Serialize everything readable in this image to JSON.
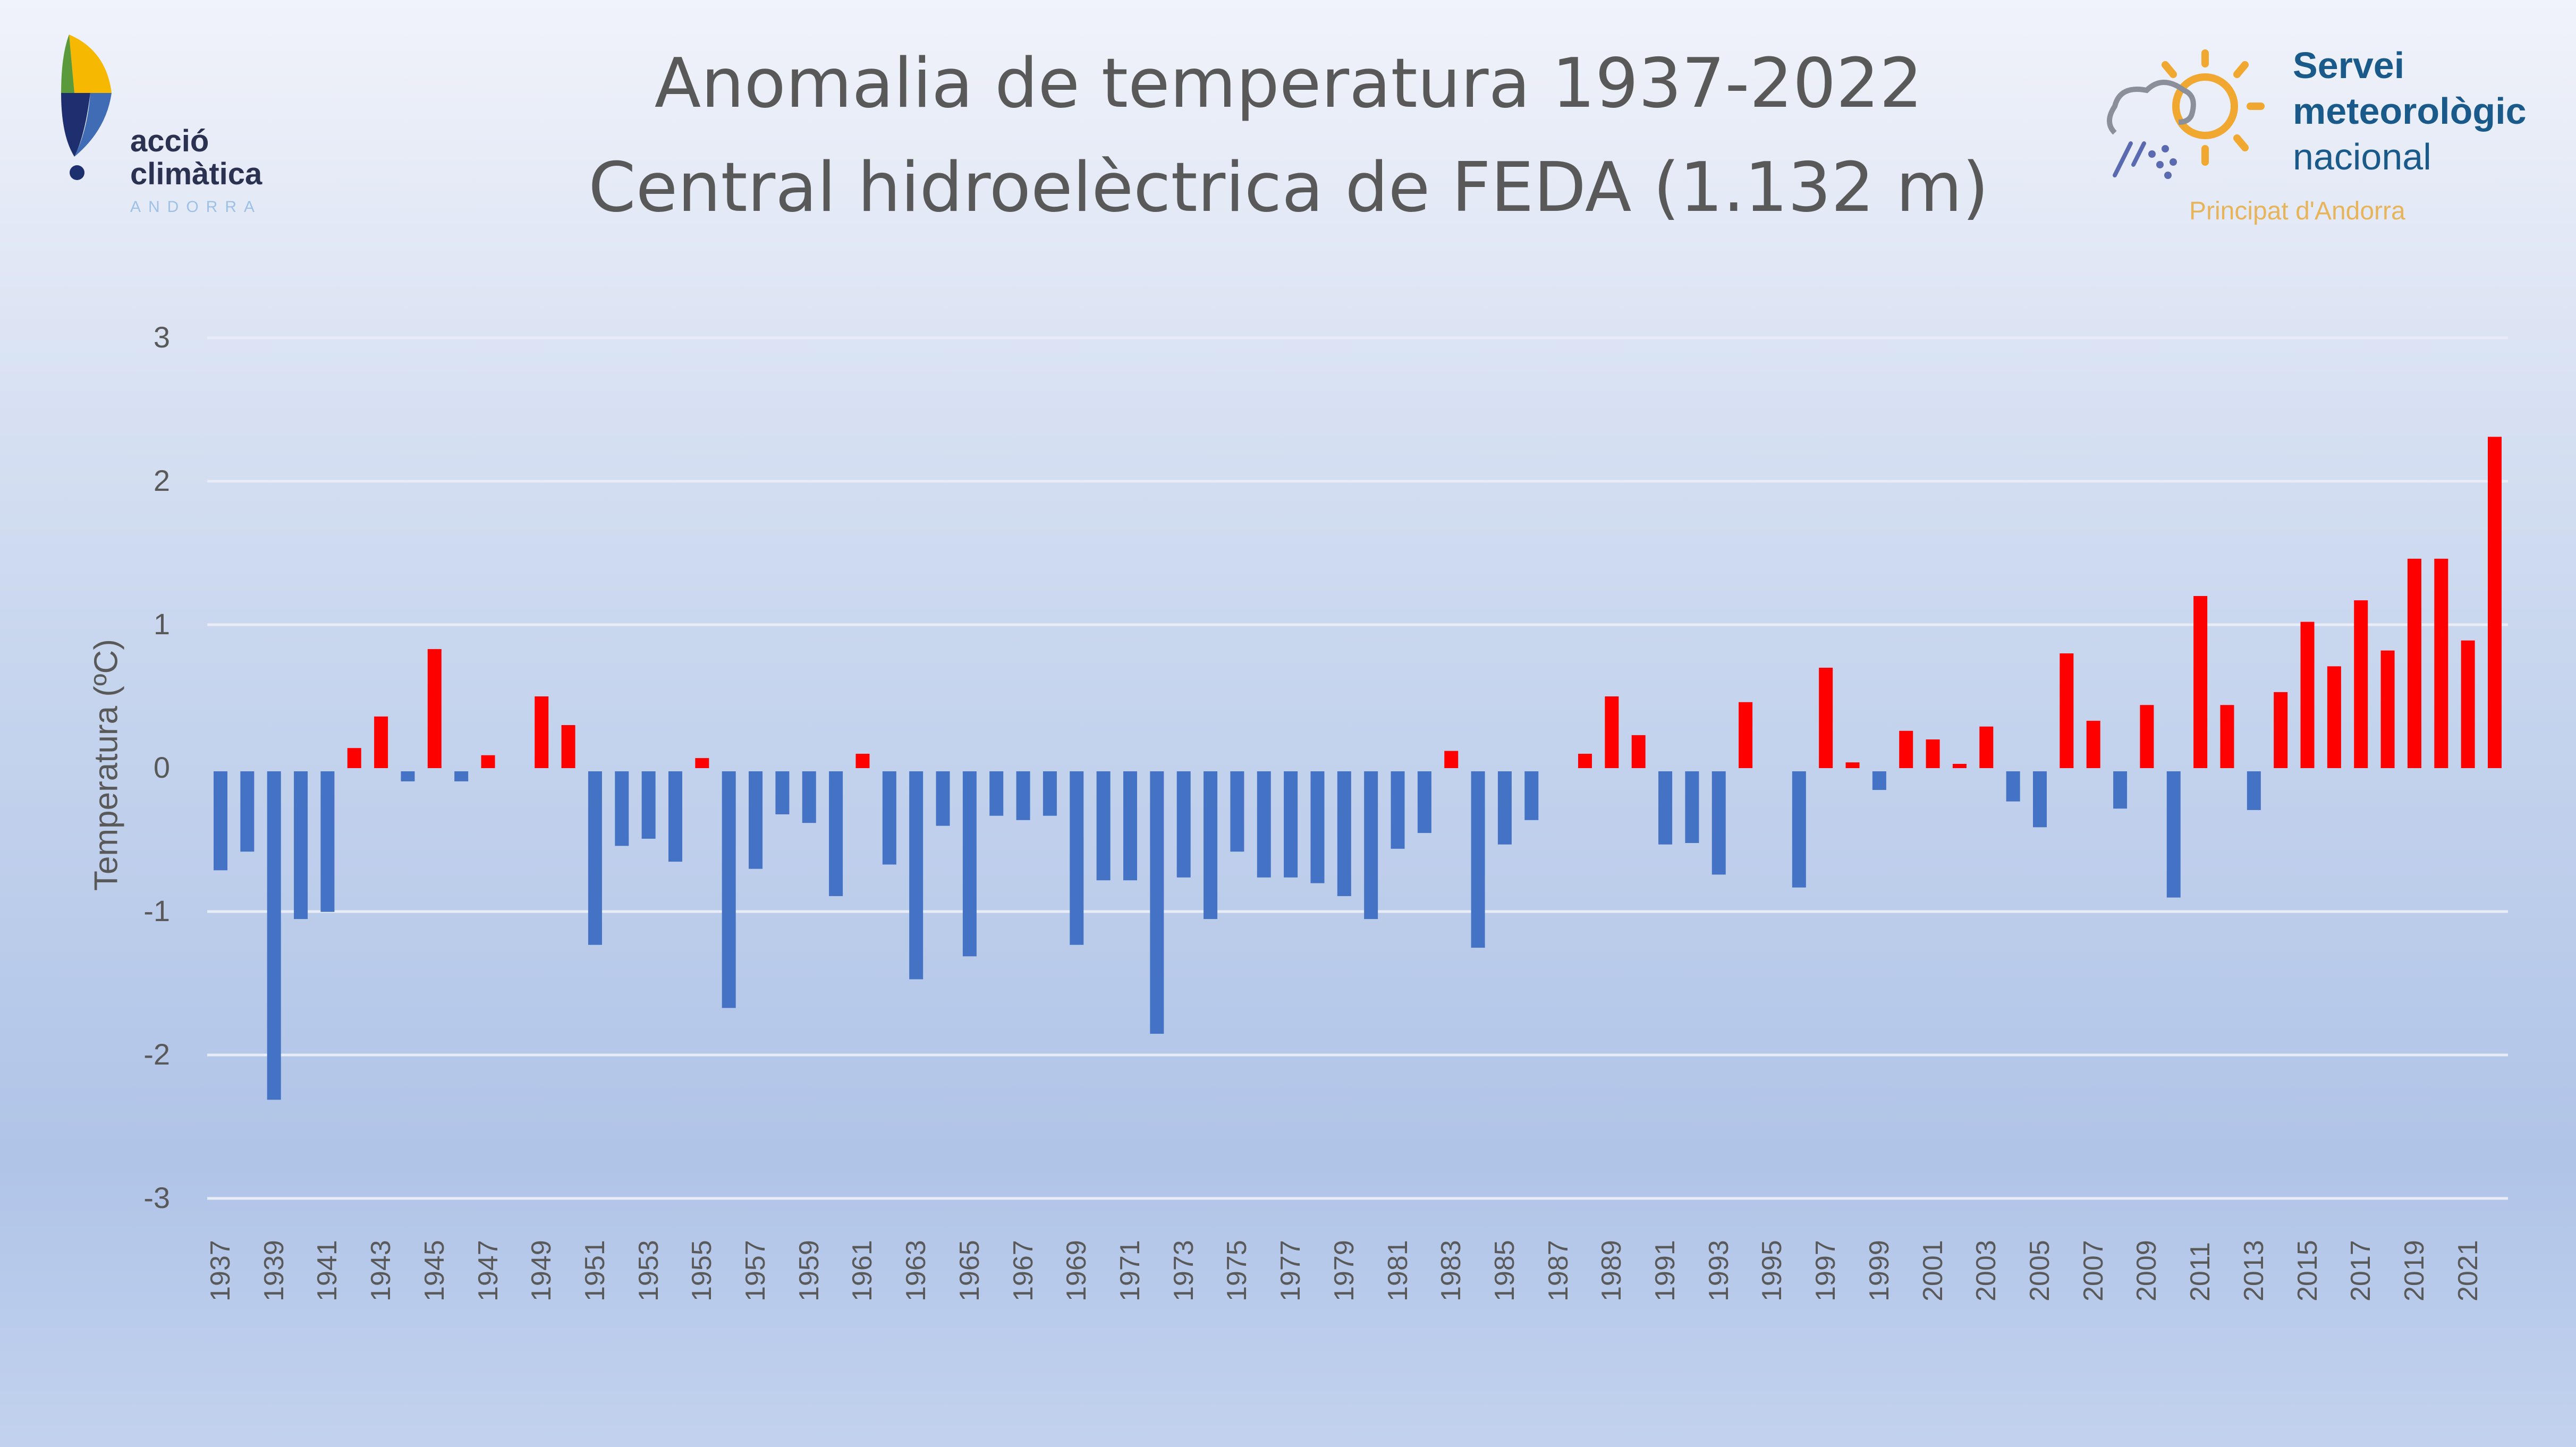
{
  "header": {
    "title_line1": "Anomalia de temperatura 1937-2022",
    "title_line2": "Central hidroelèctrica de FEDA (1.132 m)"
  },
  "logos": {
    "left": {
      "line1": "acció",
      "line2": "climàtica",
      "line3": "ANDORRA",
      "icon": "drop-leaf-logo-icon"
    },
    "right": {
      "line1": "Servei",
      "line2": "meteorològic",
      "line3": "nacional",
      "line4": "Principat d'Andorra",
      "icon": "sun-cloud-rain-icon"
    }
  },
  "colors": {
    "positive": "#ff0000",
    "negative": "#4472c4",
    "text": "#595959",
    "grid": "#e8ecf6"
  },
  "chart_data": {
    "type": "bar",
    "title": "Anomalia de temperatura 1937-2022 Central hidroelèctrica de FEDA (1.132 m)",
    "xlabel": "",
    "ylabel": "Temperatura (ºC)",
    "ylim": [
      -3,
      3
    ],
    "yticks": [
      3,
      2,
      1,
      0,
      -1,
      -2,
      -3
    ],
    "grid": true,
    "legend": null,
    "x_tick_labels": [
      "1937",
      "1939",
      "1941",
      "1943",
      "1945",
      "1947",
      "1949",
      "1951",
      "1953",
      "1955",
      "1957",
      "1959",
      "1961",
      "1963",
      "1965",
      "1967",
      "1969",
      "1971",
      "1973",
      "1975",
      "1977",
      "1979",
      "1981",
      "1983",
      "1985",
      "1987",
      "1989",
      "1991",
      "1993",
      "1995",
      "1997",
      "1999",
      "2001",
      "2003",
      "2005",
      "2007",
      "2009",
      "2011",
      "2013",
      "2015",
      "2017",
      "2019",
      "2021"
    ],
    "categories": [
      "1937",
      "1938",
      "1939",
      "1940",
      "1941",
      "1942",
      "1943",
      "1944",
      "1945",
      "1946",
      "1947",
      "1948",
      "1949",
      "1950",
      "1951",
      "1952",
      "1953",
      "1954",
      "1955",
      "1956",
      "1957",
      "1958",
      "1959",
      "1960",
      "1961",
      "1962",
      "1963",
      "1964",
      "1965",
      "1966",
      "1967",
      "1968",
      "1969",
      "1970",
      "1971",
      "1972",
      "1973",
      "1974",
      "1975",
      "1976",
      "1977",
      "1978",
      "1979",
      "1980",
      "1981",
      "1982",
      "1983",
      "1984",
      "1985",
      "1986",
      "1987",
      "1988",
      "1989",
      "1990",
      "1991",
      "1992",
      "1993",
      "1994",
      "1995",
      "1996",
      "1997",
      "1998",
      "1999",
      "2000",
      "2001",
      "2002",
      "2003",
      "2004",
      "2005",
      "2006",
      "2007",
      "2008",
      "2009",
      "2010",
      "2011",
      "2012",
      "2013",
      "2014",
      "2015",
      "2016",
      "2017",
      "2018",
      "2019",
      "2020",
      "2021",
      "2022"
    ],
    "values": [
      -0.69,
      -0.56,
      -2.29,
      -1.03,
      -0.98,
      0.14,
      0.36,
      -0.07,
      0.83,
      -0.07,
      0.09,
      0.0,
      0.5,
      0.3,
      -1.21,
      -0.52,
      -0.47,
      -0.63,
      0.07,
      -1.65,
      -0.68,
      -0.3,
      -0.36,
      -0.87,
      0.1,
      -0.65,
      -1.45,
      -0.38,
      -1.29,
      -0.31,
      -0.34,
      -0.31,
      -1.21,
      -0.76,
      -0.76,
      -1.83,
      -0.74,
      -1.03,
      -0.56,
      -0.74,
      -0.74,
      -0.78,
      -0.87,
      -1.03,
      -0.54,
      -0.43,
      0.12,
      -1.23,
      -0.51,
      -0.34,
      0.0,
      0.1,
      0.5,
      0.23,
      -0.51,
      -0.5,
      -0.72,
      0.46,
      0.0,
      -0.81,
      0.7,
      0.04,
      -0.13,
      0.26,
      0.2,
      0.02,
      0.29,
      -0.21,
      -0.39,
      0.8,
      0.33,
      -0.26,
      0.44,
      -0.88,
      1.2,
      0.44,
      -0.27,
      0.53,
      1.02,
      0.71,
      1.17,
      0.82,
      1.46,
      1.46,
      0.89,
      2.31
    ]
  }
}
